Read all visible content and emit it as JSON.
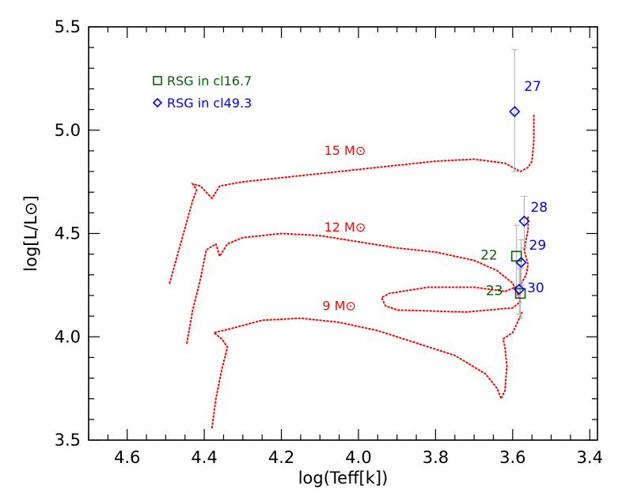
{
  "chart_data": {
    "type": "scatter",
    "title": "",
    "xlabel": "log(Teff[k])",
    "ylabel": "log[L/L⊙]",
    "xlim": [
      4.7,
      3.38
    ],
    "ylim": [
      3.5,
      5.5
    ],
    "x_ticks": [
      "4.6",
      "4.4",
      "4.2",
      "4.0",
      "3.8",
      "3.6",
      "3.4"
    ],
    "y_ticks": [
      "3.5",
      "4.0",
      "4.5",
      "5.0",
      "5.5"
    ],
    "x_tick_values": [
      4.6,
      4.4,
      4.2,
      4.0,
      3.8,
      3.6,
      3.4
    ],
    "y_tick_values": [
      3.5,
      4.0,
      4.5,
      5.0,
      5.5
    ],
    "grid": false,
    "legend_position": "top-left",
    "legend": [
      {
        "label": "RSG in cl16.7",
        "marker": "square",
        "color": "#006400"
      },
      {
        "label": "RSG in cl49.3",
        "marker": "diamond",
        "color": "#0000ff"
      }
    ],
    "series": [
      {
        "name": "RSG in cl16.7",
        "marker": "square",
        "color": "#006400",
        "points": [
          {
            "id": "22",
            "x": 3.59,
            "y": 4.39,
            "yerr_low": 4.23,
            "yerr_high": 4.54
          },
          {
            "id": "23",
            "x": 3.58,
            "y": 4.21,
            "yerr_low": 4.09,
            "yerr_high": 4.33
          }
        ]
      },
      {
        "name": "RSG in cl49.3",
        "marker": "diamond",
        "color": "#0000ff",
        "points": [
          {
            "id": "27",
            "x": 3.595,
            "y": 5.09,
            "yerr_low": 4.8,
            "yerr_high": 5.39
          },
          {
            "id": "28",
            "x": 3.57,
            "y": 4.56,
            "yerr_low": 4.43,
            "yerr_high": 4.68
          },
          {
            "id": "29",
            "x": 3.578,
            "y": 4.36,
            "yerr_low": 4.25,
            "yerr_high": 4.47
          },
          {
            "id": "30",
            "x": 3.583,
            "y": 4.23,
            "yerr_low": 4.11,
            "yerr_high": 4.35
          }
        ]
      }
    ],
    "tracks": {
      "color": "#ff0000",
      "style": "dotted",
      "items": [
        {
          "label": "15 M⊙",
          "points": [
            [
              4.49,
              4.26
            ],
            [
              4.46,
              4.46
            ],
            [
              4.43,
              4.66
            ],
            [
              4.42,
              4.71
            ],
            [
              4.43,
              4.74
            ],
            [
              4.41,
              4.73
            ],
            [
              4.38,
              4.67
            ],
            [
              4.36,
              4.73
            ],
            [
              4.3,
              4.75
            ],
            [
              4.2,
              4.77
            ],
            [
              4.1,
              4.79
            ],
            [
              4.0,
              4.81
            ],
            [
              3.9,
              4.83
            ],
            [
              3.8,
              4.85
            ],
            [
              3.7,
              4.86
            ],
            [
              3.62,
              4.84
            ],
            [
              3.58,
              4.8
            ],
            [
              3.56,
              4.82
            ],
            [
              3.55,
              4.85
            ],
            [
              3.545,
              4.95
            ],
            [
              3.545,
              5.08
            ]
          ],
          "label_pos": [
            4.035,
            4.88
          ]
        },
        {
          "label": "12 M⊙",
          "points": [
            [
              4.445,
              3.97
            ],
            [
              4.43,
              4.13
            ],
            [
              4.41,
              4.28
            ],
            [
              4.395,
              4.42
            ],
            [
              4.37,
              4.45
            ],
            [
              4.36,
              4.39
            ],
            [
              4.34,
              4.45
            ],
            [
              4.3,
              4.48
            ],
            [
              4.2,
              4.5
            ],
            [
              4.1,
              4.49
            ],
            [
              4.0,
              4.46
            ],
            [
              3.9,
              4.43
            ],
            [
              3.8,
              4.41
            ],
            [
              3.7,
              4.37
            ],
            [
              3.64,
              4.32
            ],
            [
              3.6,
              4.26
            ],
            [
              3.585,
              4.2
            ],
            [
              3.58,
              4.17
            ],
            [
              3.6,
              4.14
            ],
            [
              3.72,
              4.12
            ],
            [
              3.9,
              4.13
            ],
            [
              3.93,
              4.15
            ],
            [
              3.94,
              4.19
            ],
            [
              3.92,
              4.21
            ],
            [
              3.82,
              4.24
            ],
            [
              3.7,
              4.24
            ],
            [
              3.62,
              4.22
            ],
            [
              3.58,
              4.25
            ],
            [
              3.565,
              4.3
            ],
            [
              3.56,
              4.35
            ],
            [
              3.57,
              4.42
            ],
            [
              3.56,
              4.52
            ],
            [
              3.56,
              4.58
            ]
          ],
          "label_pos": [
            4.035,
            4.51
          ]
        },
        {
          "label": "9 M⊙",
          "points": [
            [
              4.38,
              3.56
            ],
            [
              4.37,
              3.7
            ],
            [
              4.355,
              3.84
            ],
            [
              4.34,
              3.95
            ],
            [
              4.355,
              3.99
            ],
            [
              4.375,
              4.02
            ],
            [
              4.33,
              4.04
            ],
            [
              4.25,
              4.08
            ],
            [
              4.15,
              4.09
            ],
            [
              4.05,
              4.07
            ],
            [
              3.95,
              4.03
            ],
            [
              3.85,
              3.97
            ],
            [
              3.75,
              3.91
            ],
            [
              3.67,
              3.82
            ],
            [
              3.64,
              3.75
            ],
            [
              3.63,
              3.7
            ],
            [
              3.62,
              3.74
            ],
            [
              3.615,
              3.86
            ],
            [
              3.62,
              3.95
            ],
            [
              3.625,
              3.99
            ],
            [
              3.6,
              4.02
            ],
            [
              3.59,
              4.06
            ],
            [
              3.575,
              4.12
            ]
          ],
          "label_pos": [
            4.05,
            4.13
          ]
        }
      ]
    }
  }
}
